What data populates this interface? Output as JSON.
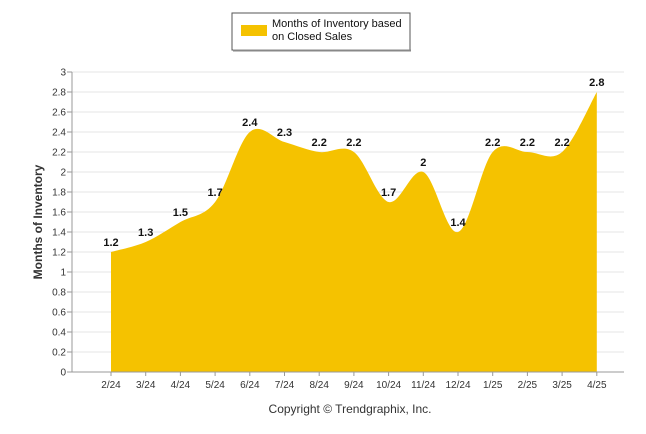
{
  "chart_data": {
    "type": "area",
    "categories": [
      "2/24",
      "3/24",
      "4/24",
      "5/24",
      "6/24",
      "7/24",
      "8/24",
      "9/24",
      "10/24",
      "11/24",
      "12/24",
      "1/25",
      "2/25",
      "3/25",
      "4/25"
    ],
    "series": [
      {
        "name": "Months of Inventory based on Closed Sales",
        "values": [
          1.2,
          1.3,
          1.5,
          1.7,
          2.4,
          2.3,
          2.2,
          2.2,
          1.7,
          2,
          1.4,
          2.2,
          2.2,
          2.2,
          2.8
        ],
        "color": "#F5C200"
      }
    ],
    "data_labels": [
      "1.2",
      "1.3",
      "1.5",
      "1.7",
      "2.4",
      "2.3",
      "2.2",
      "2.2",
      "1.7",
      "2",
      "1.4",
      "2.2",
      "2.2",
      "2.2",
      "2.8"
    ],
    "ylabel": "Months of Inventory",
    "xlabel": "",
    "ylim": [
      0,
      3
    ],
    "yticks": [
      0,
      0.2,
      0.4,
      0.6,
      0.8,
      1,
      1.2,
      1.4,
      1.6,
      1.8,
      2,
      2.2,
      2.4,
      2.6,
      2.8,
      3
    ],
    "ytick_labels": [
      "0",
      "0.2",
      "0.4",
      "0.6",
      "0.8",
      "1",
      "1.2",
      "1.4",
      "1.6",
      "1.8",
      "2",
      "2.2",
      "2.4",
      "2.6",
      "2.8",
      "3"
    ],
    "grid": true,
    "legend": {
      "position": "top-center",
      "line1": "Months of Inventory based",
      "line2": "on Closed Sales"
    }
  },
  "footer": {
    "copyright": "Copyright © Trendgraphix, Inc."
  },
  "colors": {
    "area": "#F5C200",
    "grid": "#e6e6e6",
    "axis": "#999999"
  }
}
